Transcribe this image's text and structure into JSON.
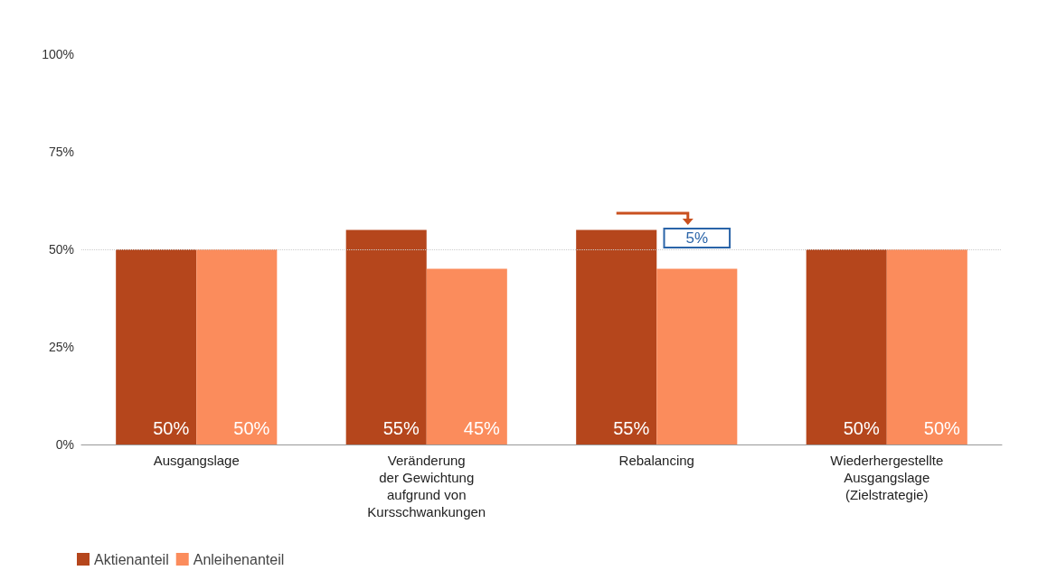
{
  "chart_data": {
    "type": "bar",
    "categories": [
      "Ausgangslage",
      "Veränderung\nder Gewichtung\naufgrund von\nKursschwankungen",
      "Rebalancing",
      "Wiederhergestellte\nAusgangslage\n(Zielstrategie)"
    ],
    "series": [
      {
        "name": "Aktienanteil",
        "color": "#b5461c",
        "values": [
          50,
          55,
          55,
          50
        ],
        "value_labels": [
          "50%",
          "55%",
          "55%",
          "50%"
        ]
      },
      {
        "name": "Anleihenanteil",
        "color": "#fb8c5c",
        "values": [
          50,
          45,
          45,
          50
        ],
        "value_labels": [
          "50%",
          "45%",
          null,
          "50%"
        ]
      }
    ],
    "ylim": [
      0,
      100
    ],
    "yticks": [
      {
        "value": 0,
        "label": "0%"
      },
      {
        "value": 25,
        "label": "25%"
      },
      {
        "value": 50,
        "label": "50%"
      },
      {
        "value": 75,
        "label": "75%"
      },
      {
        "value": 100,
        "label": "100%"
      }
    ],
    "ref_lines": [
      {
        "axis": "y",
        "value": 50,
        "label": null,
        "color": "#cccccc",
        "line_style": "dotted"
      }
    ],
    "annotations": [
      {
        "text": "5%",
        "x": "Rebalancing",
        "y": 50
      }
    ],
    "grid": false,
    "legend": "bottom left"
  }
}
